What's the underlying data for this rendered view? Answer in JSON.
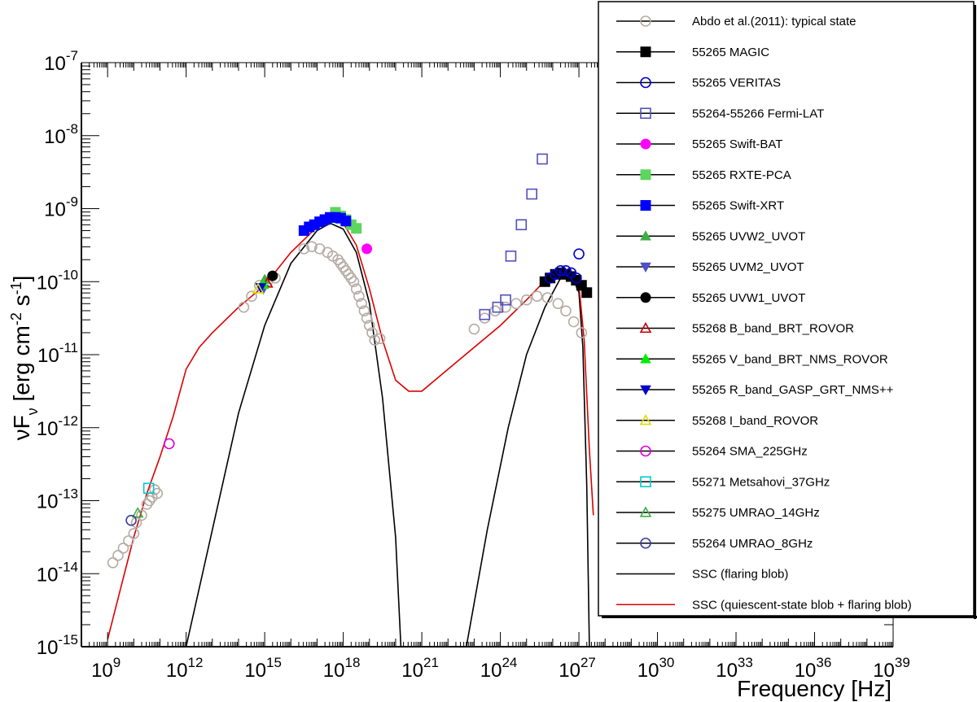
{
  "chart_data": {
    "type": "scatter",
    "title": "",
    "xlabel": "Frequency [Hz]",
    "ylabel": "νF_ν [erg cm^-2 s^-1]",
    "ylabel_parts": {
      "main": "νF",
      "sub": "ν",
      "unit_a": " [erg cm",
      "exp_a": "-2",
      "unit_b": " s",
      "exp_b": "-1",
      "unit_c": "]"
    },
    "xscale": "log",
    "yscale": "log",
    "xlim_log10": [
      8,
      39
    ],
    "ylim_log10": [
      -15,
      -7
    ],
    "x_ticks": [
      {
        "base": "10",
        "exp": "9",
        "log": 9
      },
      {
        "base": "10",
        "exp": "12",
        "log": 12
      },
      {
        "base": "10",
        "exp": "15",
        "log": 15
      },
      {
        "base": "10",
        "exp": "18",
        "log": 18
      },
      {
        "base": "10",
        "exp": "21",
        "log": 21
      },
      {
        "base": "10",
        "exp": "24",
        "log": 24
      },
      {
        "base": "10",
        "exp": "27",
        "log": 27
      },
      {
        "base": "10",
        "exp": "30",
        "log": 30
      },
      {
        "base": "10",
        "exp": "33",
        "log": 33
      },
      {
        "base": "10",
        "exp": "36",
        "log": 36
      },
      {
        "base": "10",
        "exp": "39",
        "log": 39
      }
    ],
    "y_ticks": [
      {
        "base": "10",
        "exp": "-7",
        "log": -7
      },
      {
        "base": "10",
        "exp": "-8",
        "log": -8
      },
      {
        "base": "10",
        "exp": "-9",
        "log": -9
      },
      {
        "base": "10",
        "exp": "-10",
        "log": -10
      },
      {
        "base": "10",
        "exp": "-11",
        "log": -11
      },
      {
        "base": "10",
        "exp": "-12",
        "log": -12
      },
      {
        "base": "10",
        "exp": "-13",
        "log": -13
      },
      {
        "base": "10",
        "exp": "-14",
        "log": -14
      },
      {
        "base": "10",
        "exp": "-15",
        "log": -15
      }
    ],
    "grid": false,
    "legend_position": "top-right",
    "series": [
      {
        "name": "Abdo et al.(2011): typical state",
        "marker": "circle-open",
        "color": "#b5aca4",
        "points": [
          [
            9.2,
            -13.85
          ],
          [
            9.4,
            -13.75
          ],
          [
            9.6,
            -13.65
          ],
          [
            9.8,
            -13.55
          ],
          [
            10.0,
            -13.45
          ],
          [
            10.1,
            -13.3
          ],
          [
            10.3,
            -13.2
          ],
          [
            10.5,
            -13.05
          ],
          [
            10.7,
            -12.95
          ],
          [
            10.9,
            -12.9
          ],
          [
            10.6,
            -13.0
          ],
          [
            10.8,
            -12.85
          ],
          [
            14.2,
            -10.35
          ],
          [
            14.5,
            -10.2
          ],
          [
            14.8,
            -10.05
          ],
          [
            15.1,
            -10.0
          ],
          [
            15.4,
            -9.95
          ],
          [
            16.5,
            -9.55
          ],
          [
            16.8,
            -9.52
          ],
          [
            17.1,
            -9.55
          ],
          [
            17.4,
            -9.6
          ],
          [
            17.6,
            -9.65
          ],
          [
            17.8,
            -9.7
          ],
          [
            17.9,
            -9.75
          ],
          [
            18.0,
            -9.8
          ],
          [
            18.1,
            -9.85
          ],
          [
            18.2,
            -9.9
          ],
          [
            18.3,
            -9.95
          ],
          [
            18.4,
            -10.0
          ],
          [
            18.5,
            -10.1
          ],
          [
            18.6,
            -10.2
          ],
          [
            18.7,
            -10.3
          ],
          [
            18.8,
            -10.4
          ],
          [
            18.9,
            -10.5
          ],
          [
            19.0,
            -10.6
          ],
          [
            19.1,
            -10.7
          ],
          [
            19.2,
            -10.8
          ],
          [
            19.4,
            -10.78
          ],
          [
            23.0,
            -10.65
          ],
          [
            23.4,
            -10.5
          ],
          [
            23.8,
            -10.4
          ],
          [
            24.2,
            -10.35
          ],
          [
            24.6,
            -10.3
          ],
          [
            25.0,
            -10.25
          ],
          [
            25.4,
            -10.2
          ],
          [
            25.8,
            -10.22
          ],
          [
            26.2,
            -10.3
          ],
          [
            26.5,
            -10.4
          ],
          [
            26.8,
            -10.55
          ],
          [
            27.1,
            -10.7
          ]
        ]
      },
      {
        "name": "55265 MAGIC",
        "marker": "square",
        "color": "#000000",
        "points": [
          [
            25.7,
            -10.0
          ],
          [
            25.9,
            -9.95
          ],
          [
            26.1,
            -9.9
          ],
          [
            26.3,
            -9.88
          ],
          [
            26.5,
            -9.9
          ],
          [
            26.7,
            -9.93
          ],
          [
            26.9,
            -9.98
          ],
          [
            27.1,
            -10.05
          ],
          [
            27.3,
            -10.15
          ]
        ]
      },
      {
        "name": "55265 VERITAS",
        "marker": "circle-open",
        "color": "#0000cc",
        "points": [
          [
            25.9,
            -9.95
          ],
          [
            26.1,
            -9.9
          ],
          [
            26.3,
            -9.85
          ],
          [
            26.5,
            -9.85
          ],
          [
            26.7,
            -9.88
          ],
          [
            26.9,
            -9.95
          ],
          [
            27.0,
            -9.62
          ]
        ]
      },
      {
        "name": "55264-55266 Fermi-LAT",
        "marker": "square-open",
        "color": "#5050c0",
        "points": [
          [
            23.4,
            -10.45
          ],
          [
            23.9,
            -10.35
          ],
          [
            24.2,
            -10.25
          ],
          [
            24.4,
            -9.65
          ],
          [
            24.8,
            -9.22
          ],
          [
            25.2,
            -8.8
          ],
          [
            25.6,
            -8.32
          ]
        ]
      },
      {
        "name": "55265 Swift-BAT",
        "marker": "circle",
        "color": "#ff00ff",
        "points": [
          [
            18.9,
            -9.55
          ]
        ]
      },
      {
        "name": "55265 RXTE-PCA",
        "marker": "square",
        "color": "#5cd65c",
        "points": [
          [
            17.7,
            -9.05
          ],
          [
            17.9,
            -9.1
          ],
          [
            18.1,
            -9.15
          ],
          [
            18.3,
            -9.22
          ],
          [
            18.5,
            -9.27
          ]
        ]
      },
      {
        "name": "55265 Swift-XRT",
        "marker": "square",
        "color": "#0000ff",
        "points": [
          [
            16.5,
            -9.3
          ],
          [
            16.7,
            -9.25
          ],
          [
            16.9,
            -9.22
          ],
          [
            17.1,
            -9.18
          ],
          [
            17.3,
            -9.15
          ],
          [
            17.5,
            -9.12
          ],
          [
            17.7,
            -9.12
          ],
          [
            17.9,
            -9.13
          ],
          [
            18.1,
            -9.17
          ]
        ]
      },
      {
        "name": "55265 UVW2_UVOT",
        "marker": "triangle",
        "color": "#3cb043",
        "points": [
          [
            15.0,
            -9.97
          ]
        ]
      },
      {
        "name": "55265 UVM2_UVOT",
        "marker": "triangle-down",
        "color": "#5050c8",
        "points": [
          [
            14.95,
            -10.1
          ]
        ]
      },
      {
        "name": "55265 UVW1_UVOT",
        "marker": "circle",
        "color": "#000000",
        "points": [
          [
            15.3,
            -9.92
          ]
        ]
      },
      {
        "name": "55268 B_band_BRT_ROVOR",
        "marker": "triangle-open",
        "color": "#cc0000",
        "points": [
          [
            15.1,
            -10.02
          ]
        ]
      },
      {
        "name": "55265 V_band_BRT_NMS_ROVOR",
        "marker": "triangle",
        "color": "#00ee00",
        "points": [
          [
            14.95,
            -10.04
          ]
        ]
      },
      {
        "name": "55265 R_band_GASP_GRT_NMS++",
        "marker": "triangle-down",
        "color": "#0000cc",
        "points": [
          [
            14.85,
            -10.08
          ]
        ]
      },
      {
        "name": "55268 I_band_ROVOR",
        "marker": "triangle-open",
        "color": "#dddd00",
        "points": [
          [
            14.75,
            -10.1
          ]
        ]
      },
      {
        "name": "55264 SMA_225GHz",
        "marker": "circle-open",
        "color": "#dd00dd",
        "points": [
          [
            11.35,
            -12.22
          ]
        ]
      },
      {
        "name": "55271 Metsahovi_37GHz",
        "marker": "square-open",
        "color": "#00cccc",
        "points": [
          [
            10.57,
            -12.83
          ]
        ]
      },
      {
        "name": "55275 UMRAO_14GHz",
        "marker": "triangle-open",
        "color": "#3cb043",
        "points": [
          [
            10.15,
            -13.17
          ]
        ]
      },
      {
        "name": "55264 UMRAO_8GHz",
        "marker": "circle-open",
        "color": "#3c3ca0",
        "points": [
          [
            9.9,
            -13.27
          ]
        ]
      },
      {
        "name": "SSC (flaring blob)",
        "marker": "line",
        "color": "#000000",
        "curves": [
          [
            [
              12.0,
              -15.0
            ],
            [
              13.0,
              -13.4
            ],
            [
              14.0,
              -11.8
            ],
            [
              15.0,
              -10.6
            ],
            [
              16.0,
              -9.75
            ],
            [
              17.0,
              -9.3
            ],
            [
              17.5,
              -9.2
            ],
            [
              18.0,
              -9.28
            ],
            [
              18.5,
              -9.6
            ],
            [
              19.0,
              -10.3
            ],
            [
              19.5,
              -11.6
            ],
            [
              20.0,
              -13.5
            ],
            [
              20.2,
              -15.0
            ]
          ],
          [
            [
              22.7,
              -15.0
            ],
            [
              23.5,
              -13.4
            ],
            [
              24.3,
              -12.0
            ],
            [
              25.0,
              -11.0
            ],
            [
              25.7,
              -10.35
            ],
            [
              26.3,
              -9.95
            ],
            [
              26.7,
              -9.9
            ],
            [
              27.0,
              -10.15
            ],
            [
              27.15,
              -10.9
            ],
            [
              27.3,
              -12.8
            ],
            [
              27.4,
              -15.0
            ]
          ]
        ]
      },
      {
        "name": "SSC (quiescent-state blob + flaring blob)",
        "marker": "line",
        "color": "#dd0000",
        "curves": [
          [
            [
              9.0,
              -14.9
            ],
            [
              9.5,
              -14.2
            ],
            [
              10.0,
              -13.5
            ],
            [
              10.5,
              -12.9
            ],
            [
              11.0,
              -12.4
            ],
            [
              11.5,
              -11.85
            ],
            [
              12.0,
              -11.2
            ],
            [
              12.5,
              -10.9
            ],
            [
              13.0,
              -10.7
            ],
            [
              14.0,
              -10.35
            ],
            [
              15.0,
              -10.05
            ],
            [
              16.0,
              -9.6
            ],
            [
              17.0,
              -9.25
            ],
            [
              17.5,
              -9.15
            ],
            [
              18.0,
              -9.2
            ],
            [
              18.5,
              -9.5
            ],
            [
              19.0,
              -10.1
            ],
            [
              19.5,
              -10.8
            ],
            [
              20.0,
              -11.35
            ],
            [
              20.5,
              -11.5
            ],
            [
              21.0,
              -11.5
            ],
            [
              21.5,
              -11.35
            ],
            [
              22.0,
              -11.2
            ],
            [
              23.0,
              -10.9
            ],
            [
              24.0,
              -10.6
            ],
            [
              25.0,
              -10.25
            ],
            [
              25.8,
              -9.95
            ],
            [
              26.3,
              -9.82
            ],
            [
              26.7,
              -9.85
            ],
            [
              27.0,
              -10.05
            ],
            [
              27.2,
              -10.8
            ],
            [
              27.4,
              -12.3
            ],
            [
              27.55,
              -13.2
            ]
          ]
        ]
      }
    ]
  }
}
